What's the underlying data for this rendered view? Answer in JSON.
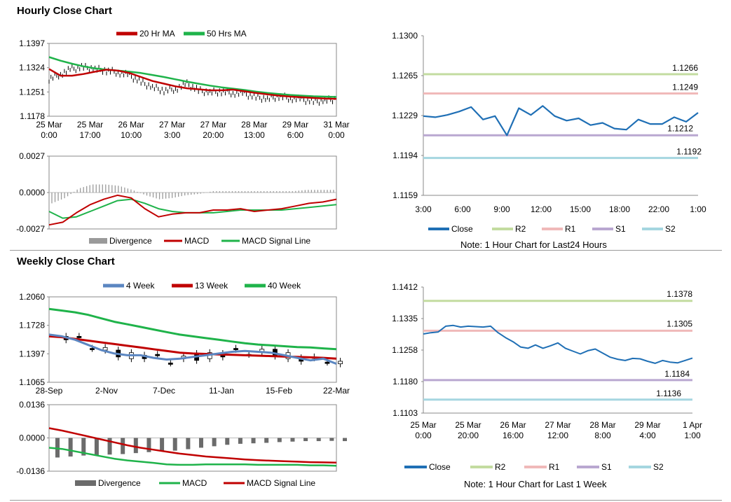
{
  "sections": {
    "hourly_title": "Hourly Close Chart",
    "weekly_title": "Weekly Close Chart"
  },
  "notes": {
    "hourly": "Note: 1 Hour Chart for Last24 Hours",
    "weekly": "Note: 1 Hour Chart for Last 1 Week"
  },
  "colors": {
    "red": "#c00000",
    "green": "#1fb34a",
    "blue4w": "#5b86c1",
    "close": "#1f6fb5",
    "r2": "#c3dca0",
    "r1": "#f0b9b9",
    "s1": "#b9a7d0",
    "s2": "#a5d6e0",
    "divergence": "#9a9a9a",
    "divergence_dark": "#6b6b6b"
  },
  "chart_data": [
    {
      "id": "hourly_ma",
      "type": "line",
      "ylim": [
        1.1178,
        1.1397
      ],
      "yticks": [
        "1.1397",
        "1.1324",
        "1.1251",
        "1.1178"
      ],
      "xticks": [
        [
          "25 Mar",
          "0:00"
        ],
        [
          "25 Mar",
          "17:00"
        ],
        [
          "26 Mar",
          "10:00"
        ],
        [
          "27 Mar",
          "3:00"
        ],
        [
          "27 Mar",
          "20:00"
        ],
        [
          "28 Mar",
          "13:00"
        ],
        [
          "29 Mar",
          "6:00"
        ],
        [
          "31 Mar",
          "0:00"
        ]
      ],
      "legend": [
        "20 Hr MA",
        "50 Hrs MA"
      ],
      "series": [
        {
          "name": "20 Hr MA",
          "values": [
            1.132,
            1.13,
            1.13,
            1.1305,
            1.1312,
            1.1318,
            1.1315,
            1.1308,
            1.1296,
            1.1284,
            1.1276,
            1.1268,
            1.1262,
            1.1259,
            1.1256,
            1.1256,
            1.1258,
            1.1253,
            1.1248,
            1.1244,
            1.124,
            1.1237,
            1.1235,
            1.1233,
            1.1231,
            1.123
          ]
        },
        {
          "name": "50 Hrs MA",
          "values": [
            1.1356,
            1.1345,
            1.1336,
            1.1328,
            1.1322,
            1.1318,
            1.1315,
            1.1312,
            1.1308,
            1.1302,
            1.1296,
            1.1289,
            1.1282,
            1.1276,
            1.127,
            1.1265,
            1.1261,
            1.1257,
            1.1252,
            1.1248,
            1.1245,
            1.1242,
            1.124,
            1.1238,
            1.1237,
            1.1236
          ]
        },
        {
          "name": "price",
          "values": [
            1.129,
            1.1305,
            1.132,
            1.1325,
            1.132,
            1.1315,
            1.131,
            1.13,
            1.128,
            1.1265,
            1.1255,
            1.126,
            1.1275,
            1.1255,
            1.125,
            1.1252,
            1.1248,
            1.1245,
            1.1235,
            1.123,
            1.1238,
            1.1232,
            1.1228,
            1.1222,
            1.1225,
            1.123
          ]
        }
      ]
    },
    {
      "id": "hourly_macd",
      "type": "line",
      "ylim": [
        -0.0027,
        0.0027
      ],
      "yticks": [
        "0.0027",
        "0.0000",
        "-0.0027"
      ],
      "legend": [
        "Divergence",
        "MACD",
        "MACD Signal Line"
      ],
      "series": [
        {
          "name": "MACD",
          "values": [
            -0.0024,
            -0.0022,
            -0.0015,
            -0.0009,
            -0.0005,
            -0.0002,
            -0.0004,
            -0.0012,
            -0.0018,
            -0.0016,
            -0.0015,
            -0.0015,
            -0.0013,
            -0.0013,
            -0.0012,
            -0.0014,
            -0.0013,
            -0.0012,
            -0.001,
            -0.0008,
            -0.0007,
            -0.0005
          ]
        },
        {
          "name": "MACD Signal Line",
          "values": [
            -0.0014,
            -0.0019,
            -0.0018,
            -0.0014,
            -0.001,
            -0.0006,
            -0.0005,
            -0.0008,
            -0.0012,
            -0.0014,
            -0.0015,
            -0.0015,
            -0.0015,
            -0.0014,
            -0.0013,
            -0.0013,
            -0.0013,
            -0.0013,
            -0.0012,
            -0.0011,
            -0.001,
            -0.0009
          ]
        },
        {
          "name": "Divergence",
          "values": [
            -0.0008,
            -0.0004,
            0.0003,
            0.0006,
            0.0006,
            0.0005,
            0.0002,
            -0.0002,
            -0.0005,
            -0.0004,
            -0.0002,
            -0.0001,
            0.0001,
            0.0001,
            0.0001,
            0.0001,
            0.0001,
            0.0001,
            0.0001,
            0.0002,
            0.0002,
            0.0002
          ]
        }
      ]
    },
    {
      "id": "hourly_close",
      "type": "line",
      "ylim": [
        1.1159,
        1.13
      ],
      "yticks": [
        "1.1300",
        "1.1265",
        "1.1229",
        "1.1194",
        "1.1159"
      ],
      "xticks": [
        "3:00",
        "6:00",
        "9:00",
        "12:00",
        "15:00",
        "18:00",
        "22:00",
        "1:00"
      ],
      "legend": [
        "Close",
        "R2",
        "R1",
        "S1",
        "S2"
      ],
      "levels": {
        "R2": 1.1266,
        "R1": 1.1249,
        "S1": 1.1212,
        "S2": 1.1192
      },
      "level_labels": {
        "R2": "1.1266",
        "R1": "1.1249",
        "S1": "1.1212",
        "S2": "1.1192"
      },
      "series": [
        {
          "name": "Close",
          "values": [
            1.1229,
            1.1228,
            1.123,
            1.1233,
            1.1237,
            1.1226,
            1.1229,
            1.1212,
            1.1236,
            1.123,
            1.1238,
            1.1229,
            1.1225,
            1.1227,
            1.1221,
            1.1223,
            1.1218,
            1.1217,
            1.1226,
            1.1222,
            1.1222,
            1.1228,
            1.1224,
            1.1232
          ]
        }
      ]
    },
    {
      "id": "weekly_ma",
      "type": "line",
      "ylim": [
        1.1065,
        1.206
      ],
      "yticks": [
        "1.2060",
        "1.1728",
        "1.1397",
        "1.1065"
      ],
      "xticks": [
        "28-Sep",
        "2-Nov",
        "7-Dec",
        "11-Jan",
        "15-Feb",
        "22-Mar"
      ],
      "legend": [
        "4 Week",
        "13 Week",
        "40 Week"
      ],
      "series": [
        {
          "name": "4 Week",
          "values": [
            1.162,
            1.16,
            1.156,
            1.15,
            1.144,
            1.14,
            1.138,
            1.138,
            1.135,
            1.133,
            1.134,
            1.136,
            1.138,
            1.14,
            1.142,
            1.143,
            1.142,
            1.141,
            1.138,
            1.135,
            1.132,
            1.134,
            1.128
          ]
        },
        {
          "name": "13 Week",
          "values": [
            1.16,
            1.159,
            1.157,
            1.155,
            1.153,
            1.151,
            1.149,
            1.147,
            1.145,
            1.143,
            1.141,
            1.14,
            1.1395,
            1.139,
            1.1385,
            1.138,
            1.1375,
            1.137,
            1.1365,
            1.136,
            1.1355,
            1.135,
            1.134
          ]
        },
        {
          "name": "40 Week",
          "values": [
            1.192,
            1.19,
            1.188,
            1.185,
            1.181,
            1.177,
            1.174,
            1.171,
            1.168,
            1.165,
            1.162,
            1.16,
            1.158,
            1.156,
            1.154,
            1.152,
            1.1505,
            1.1495,
            1.1485,
            1.1475,
            1.147,
            1.146,
            1.145
          ]
        }
      ]
    },
    {
      "id": "weekly_macd",
      "type": "line",
      "ylim": [
        -0.0136,
        0.0136
      ],
      "yticks": [
        "0.0136",
        "0.0000",
        "-0.0136"
      ],
      "legend": [
        "Divergence",
        "MACD",
        "MACD Signal Line"
      ],
      "series": [
        {
          "name": "MACD",
          "values": [
            -0.004,
            -0.0045,
            -0.0055,
            -0.0065,
            -0.0075,
            -0.0085,
            -0.0092,
            -0.0097,
            -0.0102,
            -0.0108,
            -0.011,
            -0.011,
            -0.0108,
            -0.0108,
            -0.0108,
            -0.0108,
            -0.011,
            -0.011,
            -0.011,
            -0.011,
            -0.0112,
            -0.0112,
            -0.0114
          ]
        },
        {
          "name": "MACD Signal Line",
          "values": [
            0.004,
            0.003,
            0.0018,
            0.0006,
            -0.0006,
            -0.0018,
            -0.003,
            -0.004,
            -0.0048,
            -0.0056,
            -0.0064,
            -0.007,
            -0.0076,
            -0.008,
            -0.0084,
            -0.0088,
            -0.0091,
            -0.0093,
            -0.0095,
            -0.0097,
            -0.0099,
            -0.01,
            -0.0101
          ]
        },
        {
          "name": "Divergence",
          "values": [
            -0.008,
            -0.0076,
            -0.0072,
            -0.007,
            -0.0068,
            -0.0066,
            -0.0062,
            -0.0058,
            -0.0054,
            -0.0052,
            -0.0046,
            -0.004,
            -0.0034,
            -0.0028,
            -0.0024,
            -0.0022,
            -0.002,
            -0.0017,
            -0.0015,
            -0.0013,
            -0.0013,
            -0.0012,
            -0.0013
          ]
        }
      ]
    },
    {
      "id": "weekly_close",
      "type": "line",
      "ylim": [
        1.1103,
        1.1412
      ],
      "yticks": [
        "1.1412",
        "1.1335",
        "1.1258",
        "1.1180",
        "1.1103"
      ],
      "xticks": [
        [
          "25 Mar",
          "0:00"
        ],
        [
          "25 Mar",
          "20:00"
        ],
        [
          "26 Mar",
          "16:00"
        ],
        [
          "27 Mar",
          "12:00"
        ],
        [
          "28 Mar",
          "8:00"
        ],
        [
          "29 Mar",
          "4:00"
        ],
        [
          "1 Apr",
          "1:00"
        ]
      ],
      "legend": [
        "Close",
        "R2",
        "R1",
        "S1",
        "S2"
      ],
      "levels": {
        "R2": 1.1378,
        "R1": 1.1305,
        "S1": 1.1184,
        "S2": 1.1136
      },
      "level_labels": {
        "R2": "1.1378",
        "R1": "1.1305",
        "S1": "1.1184",
        "S2": "1.1136"
      },
      "series": [
        {
          "name": "Close",
          "values": [
            1.1297,
            1.13,
            1.1302,
            1.1316,
            1.1318,
            1.1314,
            1.1316,
            1.1315,
            1.1314,
            1.1316,
            1.13,
            1.1288,
            1.1278,
            1.1265,
            1.1262,
            1.127,
            1.1262,
            1.1268,
            1.1275,
            1.1262,
            1.1255,
            1.1248,
            1.1256,
            1.126,
            1.125,
            1.124,
            1.1235,
            1.1232,
            1.1237,
            1.1236,
            1.123,
            1.1225,
            1.1232,
            1.1228,
            1.1226,
            1.1232,
            1.1238
          ]
        }
      ]
    }
  ]
}
